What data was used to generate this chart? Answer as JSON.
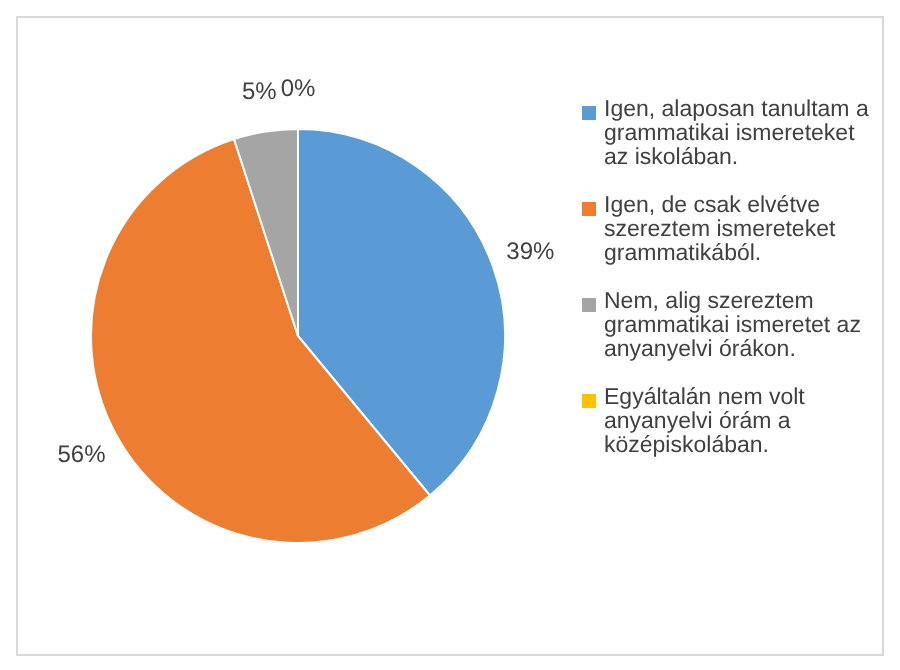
{
  "chart_data": {
    "type": "pie",
    "categories": [
      "Igen, alaposan tanultam a grammatikai ismereteket az iskolában.",
      "Igen, de csak elvétve szereztem ismereteket grammatikából.",
      "Nem, alig szereztem grammatikai ismeretet az anyanyelvi órákon.",
      "Egyáltalán nem volt anyanyelvi órám a középiskolában."
    ],
    "values": [
      39,
      56,
      5,
      0
    ],
    "colors": [
      "#5b9bd5",
      "#ed7d31",
      "#a5a5a5",
      "#ffc000"
    ],
    "value_labels": [
      "39%",
      "56%",
      "5%",
      "0%"
    ],
    "legend": "right"
  }
}
